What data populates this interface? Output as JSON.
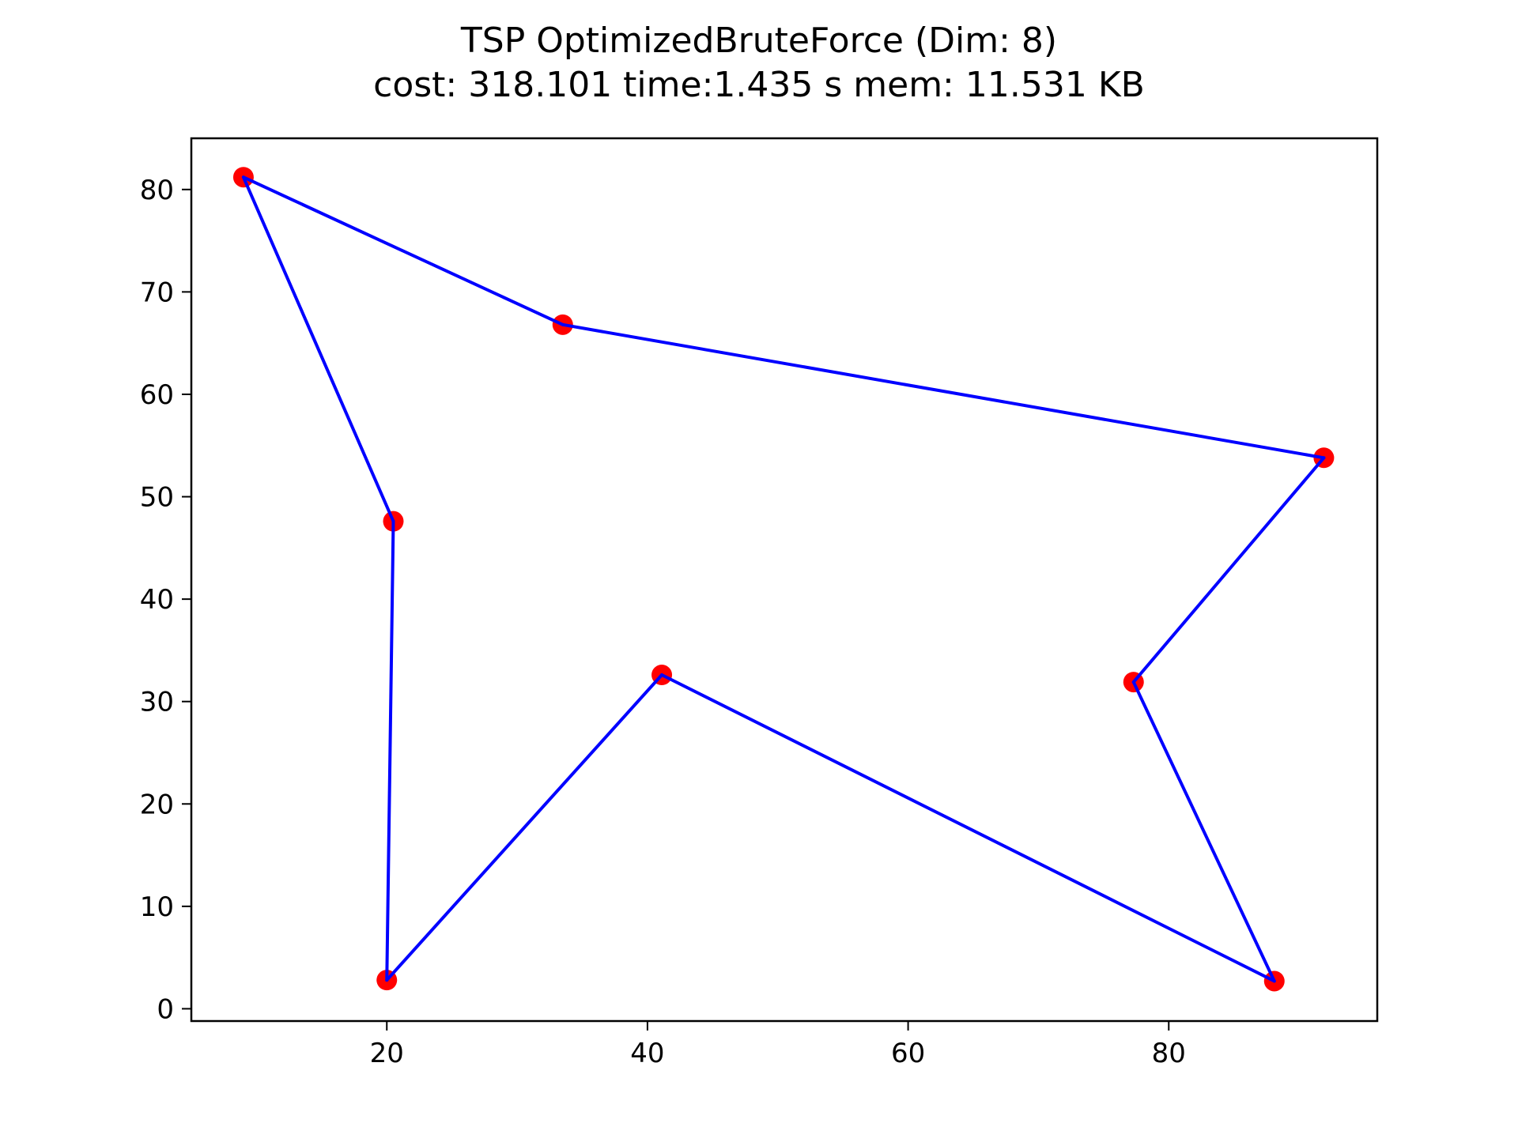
{
  "chart_data": {
    "type": "line",
    "title": "TSP OptimizedBruteForce (Dim: 8)",
    "subtitle": "cost: 318.101   time:1.435 s   mem: 11.531 KB",
    "xlabel": "",
    "ylabel": "",
    "xlim": [
      5,
      96
    ],
    "ylim": [
      -1.2,
      85
    ],
    "xticks": [
      20,
      40,
      60,
      80
    ],
    "yticks": [
      0,
      10,
      20,
      30,
      40,
      50,
      60,
      70,
      80
    ],
    "grid": false,
    "legend": "none",
    "points": [
      {
        "x": 9.0,
        "y": 81.2
      },
      {
        "x": 33.5,
        "y": 66.8
      },
      {
        "x": 91.9,
        "y": 53.8
      },
      {
        "x": 77.3,
        "y": 31.9
      },
      {
        "x": 88.1,
        "y": 2.7
      },
      {
        "x": 41.1,
        "y": 32.6
      },
      {
        "x": 20.0,
        "y": 2.8
      },
      {
        "x": 20.5,
        "y": 47.6
      }
    ],
    "route": [
      0,
      1,
      2,
      3,
      4,
      5,
      6,
      7,
      0
    ],
    "colors": {
      "route": "#0000ff",
      "points": "#ff0000"
    }
  }
}
